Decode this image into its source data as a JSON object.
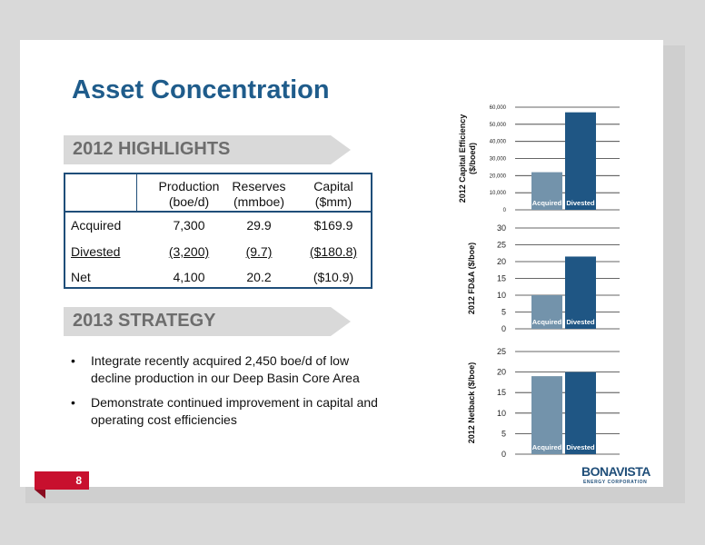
{
  "title": "Asset Concentration",
  "highlights_banner": "2012 HIGHLIGHTS",
  "strategy_banner": "2013 STRATEGY",
  "table": {
    "headers": [
      [
        "Production",
        "(boe/d)"
      ],
      [
        "Reserves",
        "(mmboe)"
      ],
      [
        "Capital",
        "($mm)"
      ]
    ],
    "rows": [
      {
        "label": "Acquired",
        "values": [
          "7,300",
          "29.9",
          "$169.9"
        ]
      },
      {
        "label": "Divested",
        "values": [
          "(3,200)",
          "(9.7)",
          "($180.8)"
        ]
      },
      {
        "label": "Net",
        "values": [
          "4,100",
          "20.2",
          "($10.9)"
        ]
      }
    ]
  },
  "bullets": [
    "Integrate recently acquired 2,450 boe/d of low decline production in our Deep Basin Core Area",
    "Demonstrate continued improvement in capital and operating cost efficiencies"
  ],
  "page_number": "8",
  "logo": {
    "word": "BONAVISTA",
    "tag": "ENERGY CORPORATION"
  },
  "colors": {
    "acquired": "#7393ab",
    "divested": "#1f5684",
    "title": "#1f5c8b",
    "accent": "#c8102e"
  },
  "chart_data": [
    {
      "type": "bar",
      "categories": [
        "Acquired",
        "Divested"
      ],
      "values": [
        22000,
        57000
      ],
      "ylabel": "2012 Capital Efficiency ($/boed)",
      "ylim": [
        0,
        60000
      ],
      "yticks": [
        "0",
        "10,000",
        "20,000",
        "30,000",
        "40,000",
        "50,000",
        "60,000"
      ],
      "grid": true
    },
    {
      "type": "bar",
      "categories": [
        "Acquired",
        "Divested"
      ],
      "values": [
        10,
        21.5
      ],
      "ylabel": "2012 FD&A ($/boe)",
      "ylim": [
        0,
        30
      ],
      "yticks": [
        "0",
        "5",
        "10",
        "15",
        "20",
        "25",
        "30"
      ],
      "grid": true
    },
    {
      "type": "bar",
      "categories": [
        "Acquired",
        "Divested"
      ],
      "values": [
        19,
        20
      ],
      "ylabel": "2012 Netback ($/boe)",
      "ylim": [
        0,
        25
      ],
      "yticks": [
        "0",
        "5",
        "10",
        "15",
        "20",
        "25"
      ],
      "grid": true
    }
  ]
}
